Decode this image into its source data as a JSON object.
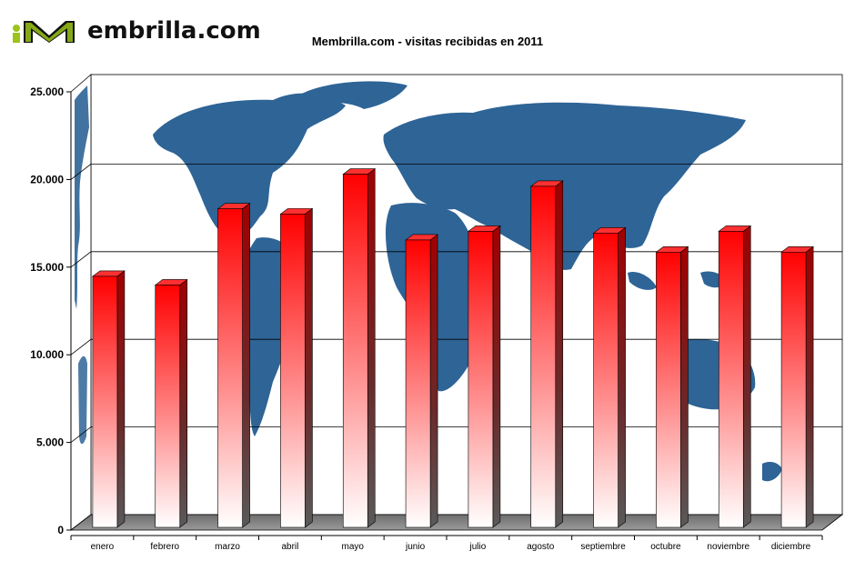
{
  "logo": {
    "text": "embrilla.com"
  },
  "chart_data": {
    "type": "bar",
    "title": "Membrilla.com - visitas recibidas en 2011",
    "xlabel": "",
    "ylabel": "",
    "ylim": [
      0,
      25000
    ],
    "yticks": [
      "0",
      "5.000",
      "10.000",
      "15.000",
      "20.000",
      "25.000"
    ],
    "categories": [
      "enero",
      "febrero",
      "marzo",
      "abril",
      "mayo",
      "junio",
      "julio",
      "agosto",
      "septiembre",
      "octubre",
      "noviembre",
      "diciembre"
    ],
    "values": [
      14500,
      14000,
      18400,
      18100,
      20400,
      16600,
      17100,
      19700,
      17000,
      15900,
      17100,
      15900
    ],
    "grid": true,
    "legend": "none",
    "colors": {
      "bar_top": "#ff0000",
      "bar_bottom": "#ffffff",
      "bar_side": "#8b0000",
      "floor": "#808080",
      "map": "#2e6496"
    }
  }
}
